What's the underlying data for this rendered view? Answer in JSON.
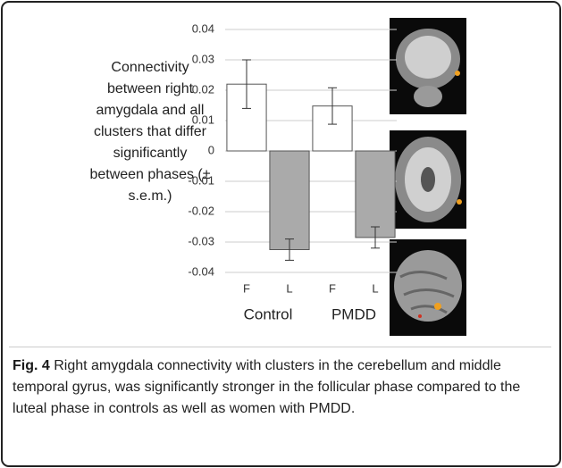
{
  "chart_data": {
    "type": "bar",
    "ylabel": "Connectivity between right amygdala and all clusters that differ significantly between phases (± s.e.m.)",
    "categories": [
      "F",
      "L",
      "F",
      "L"
    ],
    "groups": [
      "Control",
      "PMDD"
    ],
    "values": [
      0.022,
      -0.0325,
      0.0148,
      -0.0285
    ],
    "errors": [
      0.008,
      0.0035,
      0.006,
      0.0035
    ],
    "colors": [
      "#ffffff",
      "#aaaaaa",
      "#ffffff",
      "#aaaaaa"
    ],
    "ylim": [
      -0.04,
      0.04
    ],
    "yticks": [
      0.04,
      0.03,
      0.02,
      0.01,
      0,
      -0.01,
      -0.02,
      -0.03,
      -0.04
    ],
    "grid": true
  },
  "caption": {
    "label": "Fig. 4",
    "text": "Right amygdala connectivity with clusters in the cerebellum and middle temporal gyrus, was significantly stronger in the follicular phase compared to the luteal phase in controls as well as women with PMDD."
  }
}
